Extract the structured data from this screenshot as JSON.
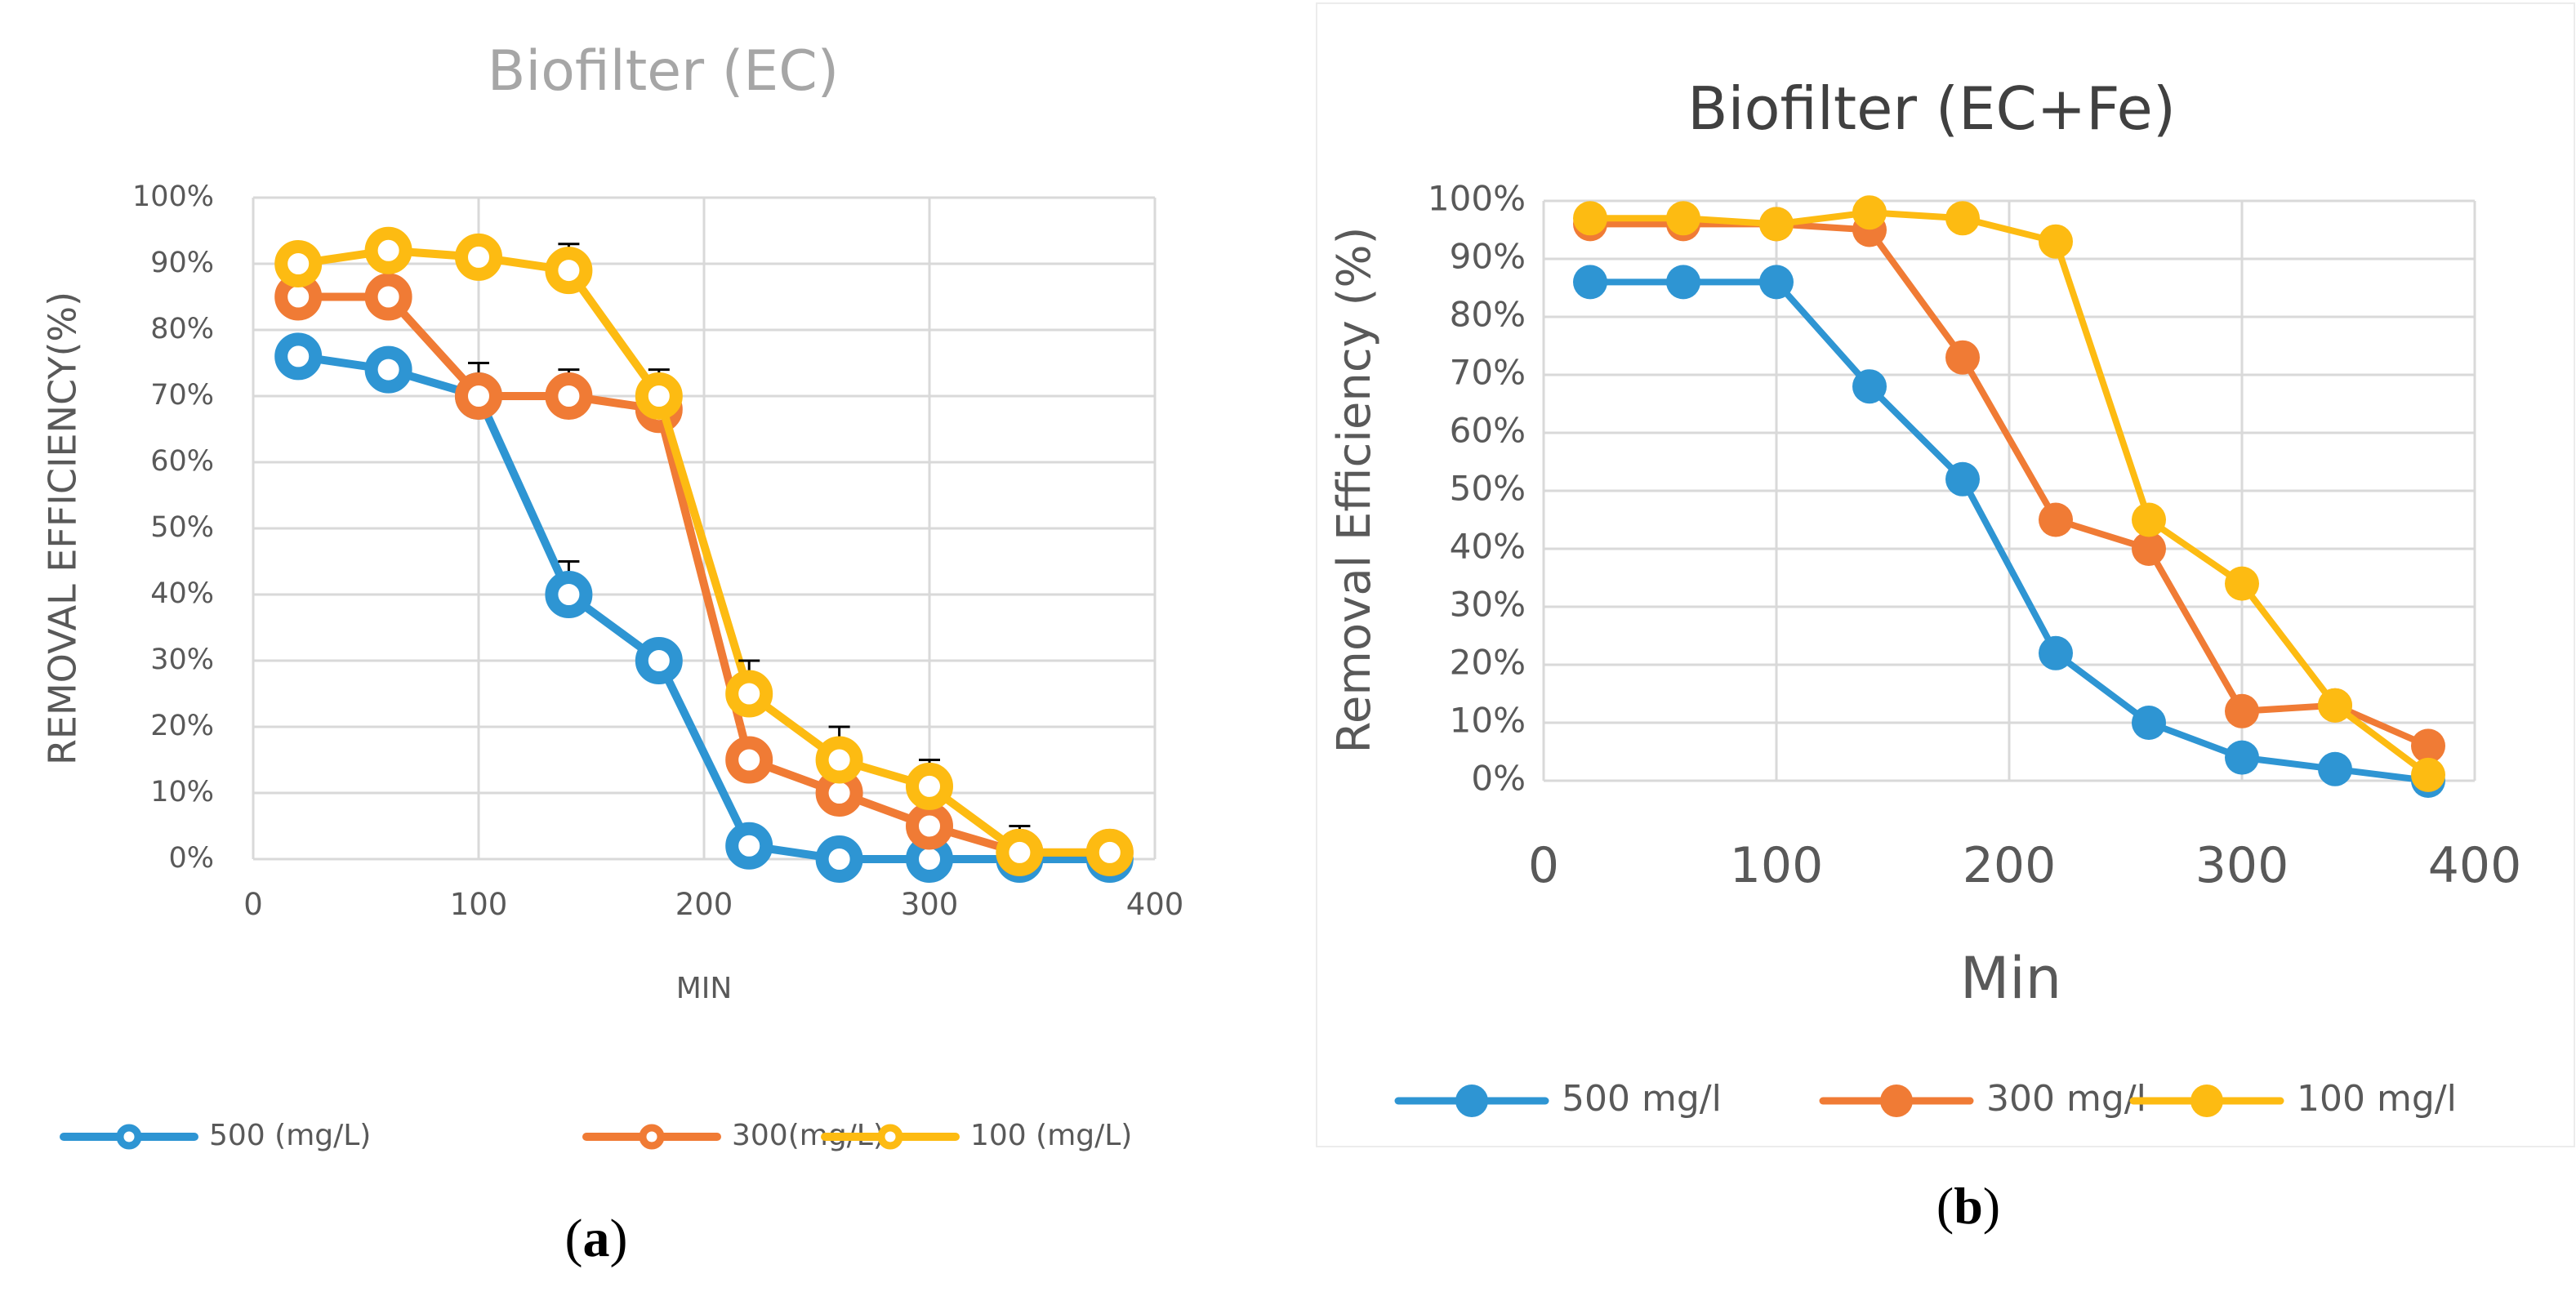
{
  "chart_data": [
    {
      "type": "line",
      "panel_label_before": "(",
      "panel_label": "a",
      "panel_label_after": ")",
      "title": "Biofilter (EC)",
      "xlabel": "MIN",
      "ylabel": "REMOVAL EFFICIENCY(%)",
      "xlim": [
        0,
        400
      ],
      "ylim": [
        0,
        100
      ],
      "x_ticks": [
        0,
        100,
        200,
        300,
        400
      ],
      "y_ticks": [
        0,
        10,
        20,
        30,
        40,
        50,
        60,
        70,
        80,
        90,
        100
      ],
      "y_tick_suffix": "%",
      "grid": true,
      "error_bars": true,
      "markers": "hollow",
      "legend_position": "bottom",
      "series": [
        {
          "name": "500 (mg/L)",
          "color": "#2e95d3",
          "x": [
            20,
            60,
            100,
            140,
            180,
            220,
            260,
            300,
            340,
            380
          ],
          "values": [
            76,
            74,
            70,
            40,
            30,
            2,
            0,
            0,
            0,
            0
          ],
          "errors": [
            0,
            0,
            5,
            5,
            0,
            0,
            0,
            0,
            0,
            0
          ]
        },
        {
          "name": "300(mg/L)",
          "color": "#f07b35",
          "x": [
            20,
            60,
            100,
            140,
            180,
            220,
            260,
            300,
            340,
            380
          ],
          "values": [
            85,
            85,
            70,
            70,
            68,
            15,
            10,
            5,
            1,
            1
          ],
          "errors": [
            0,
            5,
            5,
            4,
            5,
            0,
            5,
            0,
            0,
            0
          ]
        },
        {
          "name": "100 (mg/L)",
          "color": "#fdbb12",
          "x": [
            20,
            60,
            100,
            140,
            180,
            220,
            260,
            300,
            340,
            380
          ],
          "values": [
            90,
            92,
            91,
            89,
            70,
            25,
            15,
            11,
            1,
            1
          ],
          "errors": [
            0,
            0,
            0,
            4,
            4,
            5,
            5,
            4,
            4,
            0
          ]
        }
      ]
    },
    {
      "type": "line",
      "panel_label_before": "(",
      "panel_label": "b",
      "panel_label_after": ")",
      "title": "Biofilter (EC+Fe)",
      "xlabel": "Min",
      "ylabel": "Removal Efficiency (%)",
      "xlim": [
        0,
        400
      ],
      "ylim": [
        0,
        100
      ],
      "x_ticks": [
        0,
        100,
        200,
        300,
        400
      ],
      "y_ticks": [
        0,
        10,
        20,
        30,
        40,
        50,
        60,
        70,
        80,
        90,
        100
      ],
      "y_tick_suffix": "%",
      "grid": true,
      "error_bars": false,
      "markers": "filled",
      "legend_position": "bottom",
      "series": [
        {
          "name": "500 mg/l",
          "color": "#2e95d3",
          "x": [
            20,
            60,
            100,
            140,
            180,
            220,
            260,
            300,
            340,
            380
          ],
          "values": [
            86,
            86,
            86,
            68,
            52,
            22,
            10,
            4,
            2,
            0
          ]
        },
        {
          "name": "300 mg/l",
          "color": "#f07b35",
          "x": [
            20,
            60,
            100,
            140,
            180,
            220,
            260,
            300,
            340,
            380
          ],
          "values": [
            96,
            96,
            96,
            95,
            73,
            45,
            40,
            12,
            13,
            6
          ]
        },
        {
          "name": "100 mg/l",
          "color": "#fdbb12",
          "x": [
            20,
            60,
            100,
            140,
            180,
            220,
            260,
            300,
            340,
            380
          ],
          "values": [
            97,
            97,
            96,
            98,
            97,
            93,
            45,
            34,
            13,
            1
          ]
        }
      ]
    }
  ]
}
